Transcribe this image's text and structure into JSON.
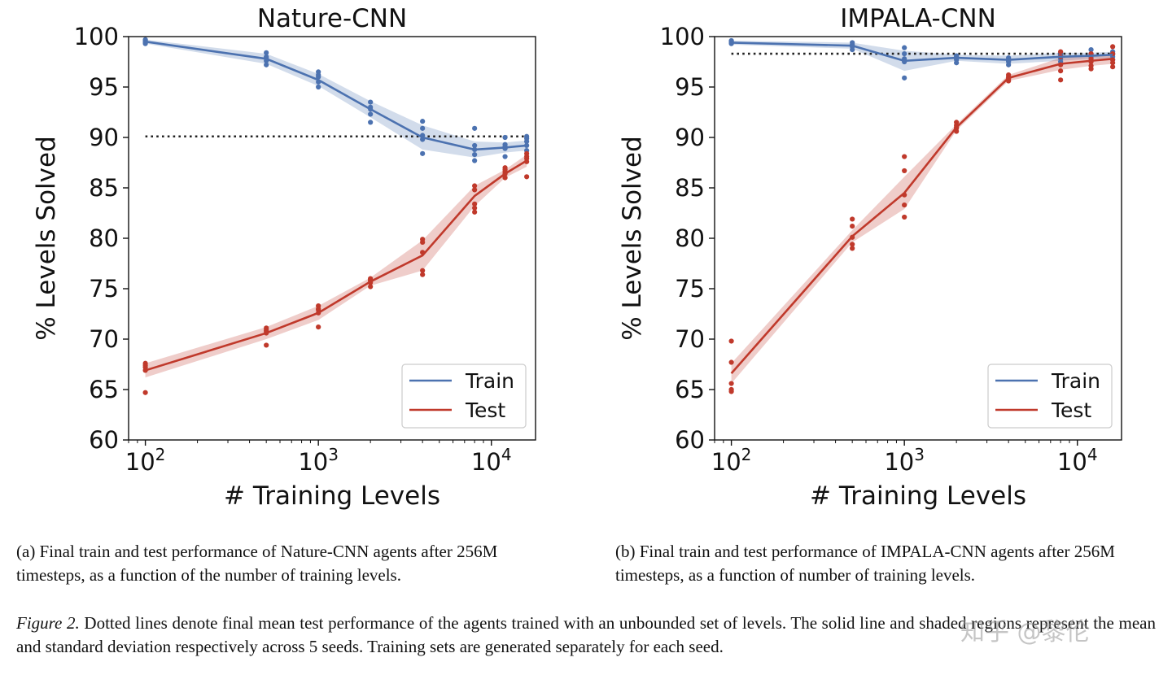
{
  "chart_data": [
    {
      "type": "line",
      "title": "Nature-CNN",
      "xlabel": "# Training Levels",
      "ylabel": "% Levels Solved",
      "xscale": "log",
      "xlim": [
        80,
        18000
      ],
      "ylim": [
        60,
        100
      ],
      "yticks": [
        "60",
        "65",
        "70",
        "75",
        "80",
        "85",
        "90",
        "95",
        "100"
      ],
      "xticks": [
        {
          "base": "10",
          "exp": "2",
          "value": 100
        },
        {
          "base": "10",
          "exp": "3",
          "value": 1000
        },
        {
          "base": "10",
          "exp": "4",
          "value": 10000
        }
      ],
      "legend": {
        "position": "bottom-right",
        "entries": [
          "Train",
          "Test"
        ]
      },
      "dotted_line": {
        "y": 90.1,
        "color": "#222222"
      },
      "series": [
        {
          "name": "Train",
          "color": "#4c72b0",
          "x": [
            100,
            500,
            1000,
            2000,
            4000,
            8000,
            12000,
            16000
          ],
          "mean": [
            99.5,
            97.8,
            95.7,
            92.8,
            90.0,
            88.8,
            89.0,
            89.2
          ],
          "std": [
            0.2,
            0.5,
            0.6,
            0.8,
            1.2,
            0.8,
            0.5,
            0.5
          ],
          "points": [
            [
              100,
              99.7
            ],
            [
              100,
              99.5
            ],
            [
              100,
              99.3
            ],
            [
              100,
              99.6
            ],
            [
              100,
              99.4
            ],
            [
              500,
              98.4
            ],
            [
              500,
              98.0
            ],
            [
              500,
              97.6
            ],
            [
              500,
              97.2
            ],
            [
              500,
              97.9
            ],
            [
              1000,
              96.5
            ],
            [
              1000,
              96.0
            ],
            [
              1000,
              95.5
            ],
            [
              1000,
              95.0
            ],
            [
              1000,
              96.2
            ],
            [
              2000,
              93.5
            ],
            [
              2000,
              93.0
            ],
            [
              2000,
              92.3
            ],
            [
              2000,
              91.5
            ],
            [
              2000,
              92.8
            ],
            [
              4000,
              91.6
            ],
            [
              4000,
              90.9
            ],
            [
              4000,
              90.2
            ],
            [
              4000,
              89.8
            ],
            [
              4000,
              88.4
            ],
            [
              8000,
              90.9
            ],
            [
              8000,
              89.2
            ],
            [
              8000,
              88.8
            ],
            [
              8000,
              88.3
            ],
            [
              8000,
              87.7
            ],
            [
              12000,
              90.0
            ],
            [
              12000,
              89.3
            ],
            [
              12000,
              88.9
            ],
            [
              12000,
              88.1
            ],
            [
              12000,
              89.1
            ],
            [
              16000,
              90.1
            ],
            [
              16000,
              89.6
            ],
            [
              16000,
              89.2
            ],
            [
              16000,
              88.7
            ],
            [
              16000,
              89.9
            ]
          ]
        },
        {
          "name": "Test",
          "color": "#c0392b",
          "x": [
            100,
            500,
            1000,
            2000,
            4000,
            8000,
            12000,
            16000
          ],
          "mean": [
            66.9,
            70.6,
            72.6,
            75.7,
            78.3,
            84.2,
            86.4,
            87.7
          ],
          "std": [
            0.7,
            0.6,
            0.7,
            0.4,
            1.5,
            1.0,
            0.4,
            0.6
          ],
          "points": [
            [
              100,
              67.6
            ],
            [
              100,
              67.2
            ],
            [
              100,
              66.9
            ],
            [
              100,
              64.7
            ],
            [
              100,
              67.4
            ],
            [
              500,
              71.1
            ],
            [
              500,
              70.8
            ],
            [
              500,
              70.6
            ],
            [
              500,
              69.4
            ],
            [
              500,
              70.9
            ],
            [
              1000,
              73.3
            ],
            [
              1000,
              72.9
            ],
            [
              1000,
              72.6
            ],
            [
              1000,
              71.2
            ],
            [
              1000,
              73.0
            ],
            [
              2000,
              76.0
            ],
            [
              2000,
              75.8
            ],
            [
              2000,
              75.6
            ],
            [
              2000,
              75.2
            ],
            [
              2000,
              75.9
            ],
            [
              4000,
              79.9
            ],
            [
              4000,
              79.6
            ],
            [
              4000,
              78.6
            ],
            [
              4000,
              76.8
            ],
            [
              4000,
              76.4
            ],
            [
              8000,
              85.2
            ],
            [
              8000,
              84.8
            ],
            [
              8000,
              83.4
            ],
            [
              8000,
              83.0
            ],
            [
              8000,
              82.6
            ],
            [
              12000,
              87.0
            ],
            [
              12000,
              86.6
            ],
            [
              12000,
              86.4
            ],
            [
              12000,
              86.0
            ],
            [
              12000,
              86.8
            ],
            [
              16000,
              88.4
            ],
            [
              16000,
              87.9
            ],
            [
              16000,
              87.6
            ],
            [
              16000,
              86.1
            ],
            [
              16000,
              88.1
            ]
          ]
        }
      ]
    },
    {
      "type": "line",
      "title": "IMPALA-CNN",
      "xlabel": "# Training Levels",
      "ylabel": "% Levels Solved",
      "xscale": "log",
      "xlim": [
        80,
        18000
      ],
      "ylim": [
        60,
        100
      ],
      "yticks": [
        "60",
        "65",
        "70",
        "75",
        "80",
        "85",
        "90",
        "95",
        "100"
      ],
      "xticks": [
        {
          "base": "10",
          "exp": "2",
          "value": 100
        },
        {
          "base": "10",
          "exp": "3",
          "value": 1000
        },
        {
          "base": "10",
          "exp": "4",
          "value": 10000
        }
      ],
      "legend": {
        "position": "bottom-right",
        "entries": [
          "Train",
          "Test"
        ]
      },
      "dotted_line": {
        "y": 98.3,
        "color": "#222222"
      },
      "series": [
        {
          "name": "Train",
          "color": "#4c72b0",
          "x": [
            100,
            500,
            1000,
            2000,
            4000,
            8000,
            12000,
            16000
          ],
          "mean": [
            99.4,
            99.1,
            97.6,
            97.9,
            97.7,
            98.0,
            98.1,
            98.2
          ],
          "std": [
            0.2,
            0.3,
            1.0,
            0.3,
            0.4,
            0.4,
            0.3,
            0.3
          ],
          "points": [
            [
              100,
              99.6
            ],
            [
              100,
              99.5
            ],
            [
              100,
              99.4
            ],
            [
              100,
              99.3
            ],
            [
              100,
              99.5
            ],
            [
              500,
              99.4
            ],
            [
              500,
              99.2
            ],
            [
              500,
              99.0
            ],
            [
              500,
              98.7
            ],
            [
              500,
              99.1
            ],
            [
              1000,
              98.9
            ],
            [
              1000,
              98.3
            ],
            [
              1000,
              97.8
            ],
            [
              1000,
              97.5
            ],
            [
              1000,
              95.9
            ],
            [
              2000,
              98.1
            ],
            [
              2000,
              97.9
            ],
            [
              2000,
              97.7
            ],
            [
              2000,
              97.4
            ],
            [
              2000,
              98.0
            ],
            [
              4000,
              97.9
            ],
            [
              4000,
              97.5
            ],
            [
              4000,
              97.2
            ],
            [
              4000,
              97.8
            ],
            [
              4000,
              97.6
            ],
            [
              8000,
              98.4
            ],
            [
              8000,
              98.1
            ],
            [
              8000,
              97.8
            ],
            [
              8000,
              97.5
            ],
            [
              8000,
              98.2
            ],
            [
              12000,
              98.7
            ],
            [
              12000,
              98.3
            ],
            [
              12000,
              97.9
            ],
            [
              12000,
              97.6
            ],
            [
              12000,
              98.1
            ],
            [
              16000,
              98.5
            ],
            [
              16000,
              98.2
            ],
            [
              16000,
              98.0
            ],
            [
              16000,
              97.7
            ],
            [
              16000,
              98.3
            ]
          ]
        },
        {
          "name": "Test",
          "color": "#c0392b",
          "x": [
            100,
            500,
            1000,
            2000,
            4000,
            8000,
            12000,
            16000
          ],
          "mean": [
            66.6,
            80.2,
            84.5,
            91.0,
            95.9,
            97.3,
            97.6,
            97.8
          ],
          "std": [
            1.0,
            0.6,
            1.6,
            0.3,
            0.3,
            0.6,
            0.5,
            0.5
          ],
          "points": [
            [
              100,
              69.8
            ],
            [
              100,
              67.7
            ],
            [
              100,
              65.6
            ],
            [
              100,
              65.0
            ],
            [
              100,
              64.8
            ],
            [
              500,
              81.9
            ],
            [
              500,
              81.2
            ],
            [
              500,
              80.1
            ],
            [
              500,
              79.4
            ],
            [
              500,
              79.0
            ],
            [
              1000,
              88.1
            ],
            [
              1000,
              86.7
            ],
            [
              1000,
              84.3
            ],
            [
              1000,
              83.3
            ],
            [
              1000,
              82.1
            ],
            [
              2000,
              91.5
            ],
            [
              2000,
              91.2
            ],
            [
              2000,
              90.9
            ],
            [
              2000,
              90.6
            ],
            [
              2000,
              91.0
            ],
            [
              4000,
              96.0
            ],
            [
              4000,
              95.8
            ],
            [
              4000,
              95.6
            ],
            [
              4000,
              96.2
            ],
            [
              4000,
              95.9
            ],
            [
              8000,
              98.5
            ],
            [
              8000,
              98.0
            ],
            [
              8000,
              97.2
            ],
            [
              8000,
              96.6
            ],
            [
              8000,
              95.7
            ],
            [
              12000,
              98.3
            ],
            [
              12000,
              97.8
            ],
            [
              12000,
              97.5
            ],
            [
              12000,
              96.8
            ],
            [
              12000,
              97.1
            ],
            [
              16000,
              99.0
            ],
            [
              16000,
              98.3
            ],
            [
              16000,
              97.7
            ],
            [
              16000,
              97.0
            ],
            [
              16000,
              97.4
            ]
          ]
        }
      ]
    }
  ],
  "captions": {
    "a": "(a) Final train and test performance of Nature-CNN agents after 256M timesteps, as a function of the number of training levels.",
    "b": "(b) Final train and test performance of IMPALA-CNN agents after 256M timesteps, as a function of number of training levels.",
    "figure_label": "Figure 2.",
    "figure_text": " Dotted lines denote final mean test performance of the agents trained with an unbounded set of levels. The solid line and shaded regions represent the mean and standard deviation respectively across 5 seeds. Training sets are generated separately for each seed."
  },
  "watermark": "知乎 @黎伦"
}
